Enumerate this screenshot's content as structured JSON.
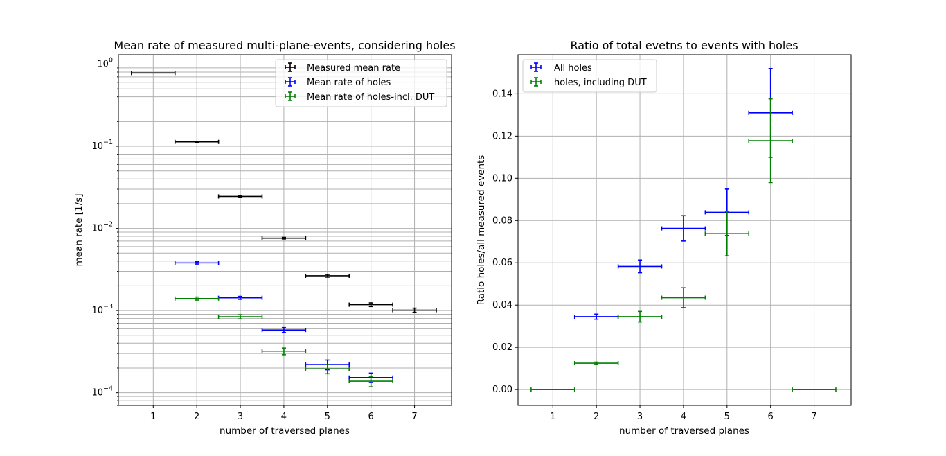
{
  "chart_data": [
    {
      "type": "scatter",
      "title": "Mean rate of measured multi-plane-events, considering holes",
      "xlabel": "number of traversed planes",
      "ylabel": "mean rate [1/s]",
      "yscale": "log",
      "ylim": [
        7e-05,
        1.3
      ],
      "xlim": [
        0.2,
        7.85
      ],
      "grid": true,
      "legend_position": "top-right",
      "x_ticks": [
        "1",
        "2",
        "3",
        "4",
        "5",
        "6",
        "7"
      ],
      "y_ticks": [
        {
          "base": "10",
          "exp": "0",
          "value": 1
        },
        {
          "base": "10",
          "exp": "−1",
          "value": 0.1
        },
        {
          "base": "10",
          "exp": "−2",
          "value": 0.01
        },
        {
          "base": "10",
          "exp": "−3",
          "value": 0.001
        },
        {
          "base": "10",
          "exp": "−4",
          "value": 0.0001
        }
      ],
      "series": [
        {
          "name": "Measured mean rate",
          "color": "#000000",
          "x": [
            1,
            2,
            3,
            4,
            5,
            6,
            7
          ],
          "y": [
            0.78,
            0.113,
            0.0245,
            0.0076,
            0.00265,
            0.00118,
            0.00101
          ],
          "xerr": 0.5,
          "yerr": [
            0,
            0.002,
            0.0004,
            0.00017,
            0.0001,
            6e-05,
            6e-05
          ]
        },
        {
          "name": "Mean rate of holes",
          "color": "#0000ff",
          "x": [
            2,
            3,
            4,
            5,
            6
          ],
          "y": [
            0.0038,
            0.00143,
            0.00058,
            0.00022,
            0.000153
          ],
          "xerr": 0.5,
          "yerr": [
            0.00012,
            6e-05,
            4e-05,
            3e-05,
            2e-05
          ]
        },
        {
          "name": "Mean rate of holes-incl. DUT",
          "color": "#008000",
          "x": [
            2,
            3,
            4,
            5,
            6
          ],
          "y": [
            0.0014,
            0.00084,
            0.00032,
            0.000195,
            0.000138
          ],
          "xerr": 0.5,
          "yerr": [
            6e-05,
            5e-05,
            3e-05,
            2.5e-05,
            2e-05
          ]
        }
      ]
    },
    {
      "type": "scatter",
      "title": "Ratio of total evetns to events with holes",
      "xlabel": "number of traversed planes",
      "ylabel": "Ratio holes/all measured events",
      "ylim": [
        -0.0075,
        0.1585
      ],
      "xlim": [
        0.2,
        7.85
      ],
      "grid": true,
      "legend_position": "top-left",
      "x_ticks": [
        "1",
        "2",
        "3",
        "4",
        "5",
        "6",
        "7"
      ],
      "y_ticks": [
        "0.00",
        "0.02",
        "0.04",
        "0.06",
        "0.08",
        "0.10",
        "0.12",
        "0.14"
      ],
      "series": [
        {
          "name": "All holes",
          "color": "#0000ff",
          "x": [
            2,
            3,
            4,
            5,
            6
          ],
          "y": [
            0.0345,
            0.0583,
            0.0763,
            0.0839,
            0.131
          ],
          "xerr": 0.5,
          "yerr": [
            0.0012,
            0.003,
            0.006,
            0.011,
            0.021
          ]
        },
        {
          "name": "holes, including DUT",
          "color": "#008000",
          "x": [
            1,
            2,
            3,
            4,
            6,
            5,
            7
          ],
          "y": [
            0.0,
            0.0125,
            0.0345,
            0.0435,
            0.1178,
            0.0738,
            0.0
          ],
          "xerr": 0.5,
          "yerr": [
            0,
            0.0005,
            0.0025,
            0.0047,
            0.0198,
            0.0105,
            0
          ]
        }
      ]
    }
  ]
}
